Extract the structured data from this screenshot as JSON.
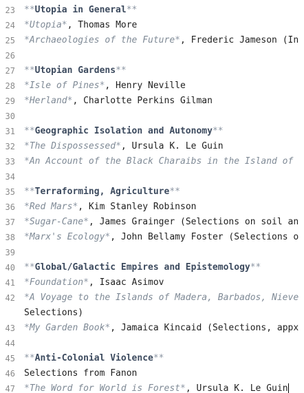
{
  "lines": [
    {
      "num": "23",
      "parts": [
        {
          "cls": "mk",
          "t": "**"
        },
        {
          "cls": "hd",
          "t": "Utopia in General"
        },
        {
          "cls": "mk",
          "t": "**"
        }
      ]
    },
    {
      "num": "24",
      "parts": [
        {
          "cls": "mk",
          "t": "*"
        },
        {
          "cls": "it",
          "t": "Utopia"
        },
        {
          "cls": "mk",
          "t": "*"
        },
        {
          "cls": "pl",
          "t": ", Thomas More"
        }
      ]
    },
    {
      "num": "25",
      "parts": [
        {
          "cls": "mk",
          "t": "*"
        },
        {
          "cls": "it",
          "t": "Archaeologies of the Future"
        },
        {
          "cls": "mk",
          "t": "*"
        },
        {
          "cls": "pl",
          "t": ", Frederic Jameson (In"
        }
      ]
    },
    {
      "num": "26",
      "parts": []
    },
    {
      "num": "27",
      "parts": [
        {
          "cls": "mk",
          "t": "**"
        },
        {
          "cls": "hd",
          "t": "Utopian Gardens"
        },
        {
          "cls": "mk",
          "t": "**"
        }
      ]
    },
    {
      "num": "28",
      "parts": [
        {
          "cls": "mk",
          "t": "*"
        },
        {
          "cls": "it",
          "t": "Isle of Pines"
        },
        {
          "cls": "mk",
          "t": "*"
        },
        {
          "cls": "pl",
          "t": ", Henry Neville"
        }
      ]
    },
    {
      "num": "29",
      "parts": [
        {
          "cls": "mk",
          "t": "*"
        },
        {
          "cls": "it",
          "t": "Herland"
        },
        {
          "cls": "mk",
          "t": "*"
        },
        {
          "cls": "pl",
          "t": ", Charlotte Perkins Gilman"
        }
      ]
    },
    {
      "num": "30",
      "parts": []
    },
    {
      "num": "31",
      "parts": [
        {
          "cls": "mk",
          "t": "**"
        },
        {
          "cls": "hd",
          "t": "Geographic Isolation and Autonomy"
        },
        {
          "cls": "mk",
          "t": "**"
        }
      ]
    },
    {
      "num": "32",
      "parts": [
        {
          "cls": "mk",
          "t": "*"
        },
        {
          "cls": "it",
          "t": "The Dispossessed"
        },
        {
          "cls": "mk",
          "t": "*"
        },
        {
          "cls": "pl",
          "t": ", Ursula K. Le Guin"
        }
      ]
    },
    {
      "num": "33",
      "parts": [
        {
          "cls": "mk",
          "t": "*"
        },
        {
          "cls": "it",
          "t": "An Account of the Black Charaibs in the Island of"
        }
      ]
    },
    {
      "num": "34",
      "parts": []
    },
    {
      "num": "35",
      "parts": [
        {
          "cls": "mk",
          "t": "**"
        },
        {
          "cls": "hd",
          "t": "Terraforming, Agriculture"
        },
        {
          "cls": "mk",
          "t": "**"
        }
      ]
    },
    {
      "num": "36",
      "parts": [
        {
          "cls": "mk",
          "t": "*"
        },
        {
          "cls": "it",
          "t": "Red Mars"
        },
        {
          "cls": "mk",
          "t": "*"
        },
        {
          "cls": "pl",
          "t": ", Kim Stanley Robinson"
        }
      ]
    },
    {
      "num": "37",
      "parts": [
        {
          "cls": "mk",
          "t": "*"
        },
        {
          "cls": "it",
          "t": "Sugar-Cane"
        },
        {
          "cls": "mk",
          "t": "*"
        },
        {
          "cls": "pl",
          "t": ", James Grainger (Selections on soil an"
        }
      ]
    },
    {
      "num": "38",
      "parts": [
        {
          "cls": "mk",
          "t": "*"
        },
        {
          "cls": "it",
          "t": "Marx's Ecology"
        },
        {
          "cls": "mk",
          "t": "*"
        },
        {
          "cls": "pl",
          "t": ", John Bellamy Foster (Selections o"
        }
      ]
    },
    {
      "num": "39",
      "parts": []
    },
    {
      "num": "40",
      "parts": [
        {
          "cls": "mk",
          "t": "**"
        },
        {
          "cls": "hd",
          "t": "Global/Galactic Empires and Epistemology"
        },
        {
          "cls": "mk",
          "t": "**"
        }
      ]
    },
    {
      "num": "41",
      "parts": [
        {
          "cls": "mk",
          "t": "*"
        },
        {
          "cls": "it",
          "t": "Foundation"
        },
        {
          "cls": "mk",
          "t": "*"
        },
        {
          "cls": "pl",
          "t": ", Isaac Asimov"
        }
      ]
    },
    {
      "num": "42",
      "parts": [
        {
          "cls": "mk",
          "t": "*"
        },
        {
          "cls": "it",
          "t": "A Voyage to the Islands of Madera, Barbados, Nieve"
        }
      ]
    },
    {
      "num": "",
      "parts": [
        {
          "cls": "pl",
          "t": "Selections)"
        }
      ]
    },
    {
      "num": "43",
      "parts": [
        {
          "cls": "mk",
          "t": "*"
        },
        {
          "cls": "it",
          "t": "My Garden Book"
        },
        {
          "cls": "mk",
          "t": "*"
        },
        {
          "cls": "pl",
          "t": ", Jamaica Kincaid (Selections, appx"
        }
      ]
    },
    {
      "num": "44",
      "parts": []
    },
    {
      "num": "45",
      "parts": [
        {
          "cls": "mk",
          "t": "**"
        },
        {
          "cls": "hd",
          "t": "Anti-Colonial Violence"
        },
        {
          "cls": "mk",
          "t": "**"
        }
      ]
    },
    {
      "num": "46",
      "parts": [
        {
          "cls": "pl",
          "t": "Selections from Fanon"
        }
      ]
    },
    {
      "num": "47",
      "parts": [
        {
          "cls": "mk",
          "t": "*"
        },
        {
          "cls": "it",
          "t": "The Word for World is Forest"
        },
        {
          "cls": "mk",
          "t": "*"
        },
        {
          "cls": "pl",
          "t": ", Ursula K. Le Guin"
        }
      ],
      "caret": true
    }
  ]
}
